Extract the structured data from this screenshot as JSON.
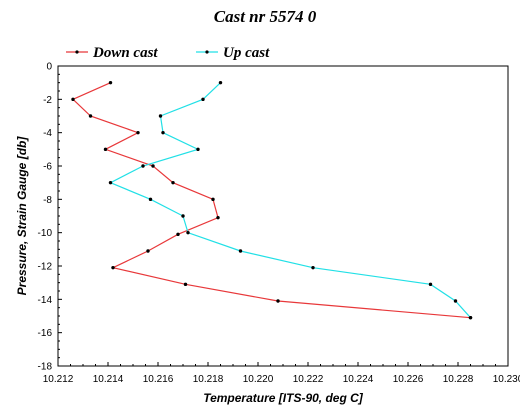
{
  "chart_data": {
    "type": "line",
    "title": "Cast nr 5574 0",
    "xlabel": "Temperature [ITS-90, deg C]",
    "ylabel": "Pressure, Strain Gauge [db]",
    "xlim": [
      10.212,
      10.23
    ],
    "ylim": [
      -18,
      0
    ],
    "x_ticks": [
      "10.212",
      "10.214",
      "10.216",
      "10.218",
      "10.220",
      "10.222",
      "10.224",
      "10.226",
      "10.228",
      "10.230"
    ],
    "y_ticks": [
      "0",
      "-2",
      "-4",
      "-6",
      "-8",
      "-10",
      "-12",
      "-14",
      "-16",
      "-18"
    ],
    "legend_position": "top-left",
    "grid": false,
    "series": [
      {
        "name": "Down cast",
        "color": "#e8383a",
        "points": [
          [
            10.2141,
            -1.0
          ],
          [
            10.2126,
            -2.0
          ],
          [
            10.2133,
            -3.0
          ],
          [
            10.2152,
            -4.0
          ],
          [
            10.2139,
            -5.0
          ],
          [
            10.2158,
            -6.0
          ],
          [
            10.2166,
            -7.0
          ],
          [
            10.2182,
            -8.0
          ],
          [
            10.2184,
            -9.1
          ],
          [
            10.2168,
            -10.1
          ],
          [
            10.2156,
            -11.1
          ],
          [
            10.2142,
            -12.1
          ],
          [
            10.2171,
            -13.1
          ],
          [
            10.2208,
            -14.1
          ],
          [
            10.2285,
            -15.1
          ]
        ]
      },
      {
        "name": "Up cast",
        "color": "#22e0e6",
        "points": [
          [
            10.2185,
            -1.0
          ],
          [
            10.2178,
            -2.0
          ],
          [
            10.2161,
            -3.0
          ],
          [
            10.2162,
            -4.0
          ],
          [
            10.2176,
            -5.0
          ],
          [
            10.2154,
            -6.0
          ],
          [
            10.2141,
            -7.0
          ],
          [
            10.2157,
            -8.0
          ],
          [
            10.217,
            -9.0
          ],
          [
            10.2172,
            -10.0
          ],
          [
            10.2193,
            -11.1
          ],
          [
            10.2222,
            -12.1
          ],
          [
            10.2269,
            -13.1
          ],
          [
            10.2279,
            -14.1
          ],
          [
            10.2285,
            -15.1
          ]
        ]
      }
    ]
  }
}
